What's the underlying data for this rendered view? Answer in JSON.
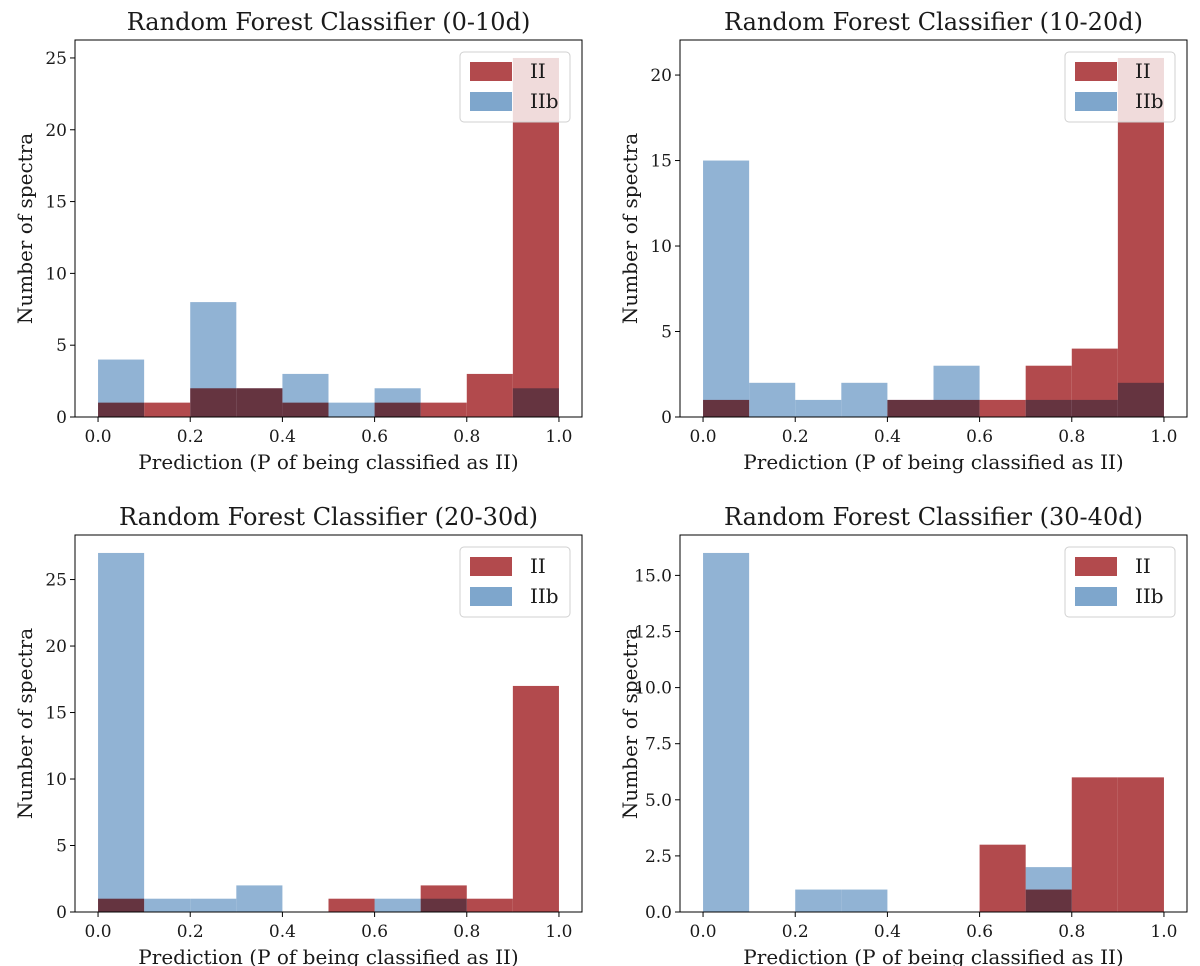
{
  "chart_data": [
    {
      "type": "bar",
      "title": "Random Forest Classifier (0-10d)",
      "xlabel": "Prediction (P of being classified as II)",
      "ylabel": "Number of spectra",
      "bin_edges": [
        0.0,
        0.1,
        0.2,
        0.3,
        0.4,
        0.5,
        0.6,
        0.7,
        0.8,
        0.9,
        1.0
      ],
      "xlim": [
        -0.05,
        1.05
      ],
      "ylim": [
        0,
        26.25
      ],
      "xticks": [
        0.0,
        0.2,
        0.4,
        0.6,
        0.8,
        1.0
      ],
      "xtick_labels": [
        "0.0",
        "0.2",
        "0.4",
        "0.6",
        "0.8",
        "1.0"
      ],
      "yticks": [
        0,
        5,
        10,
        15,
        20,
        25
      ],
      "ytick_labels": [
        "0",
        "5",
        "10",
        "15",
        "20",
        "25"
      ],
      "series": [
        {
          "name": "II",
          "color": "#b24a4d",
          "values": [
            1,
            1,
            2,
            2,
            1,
            0,
            1,
            1,
            3,
            25
          ]
        },
        {
          "name": "IIb",
          "color": "#7ea6cc",
          "values": [
            4,
            0,
            8,
            2,
            3,
            1,
            2,
            0,
            0,
            2
          ]
        }
      ],
      "legend": {
        "position": "top-right",
        "labels": [
          "II",
          "IIb"
        ]
      }
    },
    {
      "type": "bar",
      "title": "Random Forest Classifier (10-20d)",
      "xlabel": "Prediction (P of being classified as II)",
      "ylabel": "Number of spectra",
      "bin_edges": [
        0.0,
        0.1,
        0.2,
        0.3,
        0.4,
        0.5,
        0.6,
        0.7,
        0.8,
        0.9,
        1.0
      ],
      "xlim": [
        -0.05,
        1.05
      ],
      "ylim": [
        0,
        22.05
      ],
      "xticks": [
        0.0,
        0.2,
        0.4,
        0.6,
        0.8,
        1.0
      ],
      "xtick_labels": [
        "0.0",
        "0.2",
        "0.4",
        "0.6",
        "0.8",
        "1.0"
      ],
      "yticks": [
        0,
        5,
        10,
        15,
        20
      ],
      "ytick_labels": [
        "0",
        "5",
        "10",
        "15",
        "20"
      ],
      "series": [
        {
          "name": "II",
          "color": "#b24a4d",
          "values": [
            1,
            0,
            0,
            0,
            1,
            1,
            1,
            3,
            4,
            21
          ]
        },
        {
          "name": "IIb",
          "color": "#7ea6cc",
          "values": [
            15,
            2,
            1,
            2,
            1,
            3,
            0,
            1,
            1,
            2
          ]
        }
      ],
      "legend": {
        "position": "top-right",
        "labels": [
          "II",
          "IIb"
        ]
      }
    },
    {
      "type": "bar",
      "title": "Random Forest Classifier (20-30d)",
      "xlabel": "Prediction (P of being classified as II)",
      "ylabel": "Number of spectra",
      "bin_edges": [
        0.0,
        0.1,
        0.2,
        0.3,
        0.4,
        0.5,
        0.6,
        0.7,
        0.8,
        0.9,
        1.0
      ],
      "xlim": [
        -0.05,
        1.05
      ],
      "ylim": [
        0,
        28.35
      ],
      "xticks": [
        0.0,
        0.2,
        0.4,
        0.6,
        0.8,
        1.0
      ],
      "xtick_labels": [
        "0.0",
        "0.2",
        "0.4",
        "0.6",
        "0.8",
        "1.0"
      ],
      "yticks": [
        0,
        5,
        10,
        15,
        20,
        25
      ],
      "ytick_labels": [
        "0",
        "5",
        "10",
        "15",
        "20",
        "25"
      ],
      "series": [
        {
          "name": "II",
          "color": "#b24a4d",
          "values": [
            1,
            0,
            0,
            0,
            0,
            1,
            0,
            2,
            1,
            17
          ]
        },
        {
          "name": "IIb",
          "color": "#7ea6cc",
          "values": [
            27,
            1,
            1,
            2,
            0,
            0,
            1,
            1,
            0,
            0
          ]
        }
      ],
      "legend": {
        "position": "top-right",
        "labels": [
          "II",
          "IIb"
        ]
      }
    },
    {
      "type": "bar",
      "title": "Random Forest Classifier (30-40d)",
      "xlabel": "Prediction (P of being classified as II)",
      "ylabel": "Number of spectra",
      "bin_edges": [
        0.0,
        0.1,
        0.2,
        0.3,
        0.4,
        0.5,
        0.6,
        0.7,
        0.8,
        0.9,
        1.0
      ],
      "xlim": [
        -0.05,
        1.05
      ],
      "ylim": [
        0,
        16.8
      ],
      "xticks": [
        0.0,
        0.2,
        0.4,
        0.6,
        0.8,
        1.0
      ],
      "xtick_labels": [
        "0.0",
        "0.2",
        "0.4",
        "0.6",
        "0.8",
        "1.0"
      ],
      "yticks": [
        0,
        2.5,
        5,
        7.5,
        10,
        12.5,
        15
      ],
      "ytick_labels": [
        "0.0",
        "2.5",
        "5.0",
        "7.5",
        "10.0",
        "12.5",
        "15.0"
      ],
      "series": [
        {
          "name": "II",
          "color": "#b24a4d",
          "values": [
            0,
            0,
            0,
            0,
            0,
            0,
            3,
            1,
            6,
            6
          ]
        },
        {
          "name": "IIb",
          "color": "#7ea6cc",
          "values": [
            16,
            0,
            1,
            1,
            0,
            0,
            0,
            2,
            0,
            0
          ]
        }
      ],
      "legend": {
        "position": "top-right",
        "labels": [
          "II",
          "IIb"
        ]
      }
    }
  ]
}
